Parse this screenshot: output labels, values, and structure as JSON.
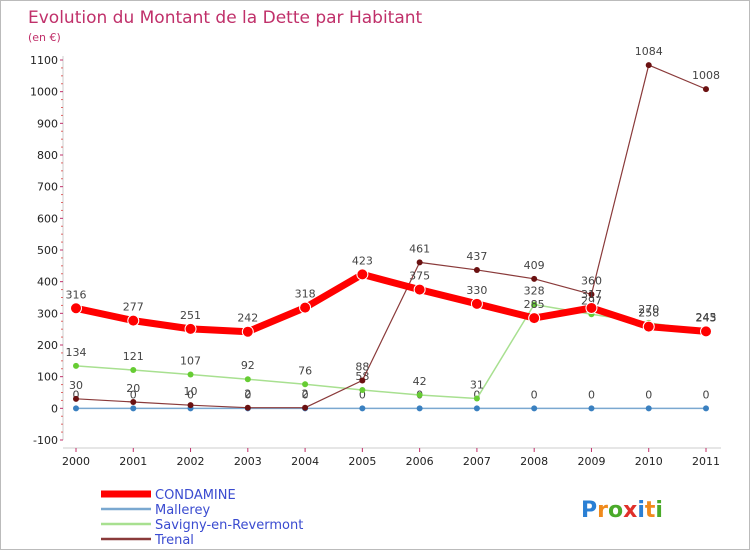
{
  "chart_data": {
    "type": "line",
    "title": "Evolution du Montant de la Dette par Habitant",
    "subtitle": "(en €)",
    "x": [
      2000,
      2001,
      2002,
      2003,
      2004,
      2005,
      2006,
      2007,
      2008,
      2009,
      2010,
      2011
    ],
    "y_ticks": [
      -100,
      0,
      100,
      200,
      300,
      400,
      500,
      600,
      700,
      800,
      900,
      1000,
      1100
    ],
    "ylim": [
      -100,
      1100
    ],
    "grid": false,
    "legend_position": "bottom-left",
    "series": [
      {
        "name": "CONDAMINE",
        "color": "#ff0000",
        "marker": "#ff0000",
        "width": 7,
        "values": [
          316,
          277,
          251,
          242,
          318,
          423,
          375,
          330,
          285,
          317,
          258,
          243
        ]
      },
      {
        "name": "Mallerey",
        "color": "#7aa8d0",
        "marker": "#3a80c0",
        "width": 1.5,
        "values": [
          0,
          0,
          0,
          0,
          0,
          0,
          0,
          0,
          0,
          0,
          0,
          0
        ]
      },
      {
        "name": "Savigny-en-Revermont",
        "color": "#a8e090",
        "marker": "#66cc33",
        "width": 1.5,
        "values": [
          134,
          121,
          107,
          92,
          76,
          58,
          42,
          31,
          328,
          297,
          270,
          245
        ]
      },
      {
        "name": "Trenal",
        "color": "#8a3a3a",
        "marker": "#6b1111",
        "width": 1.2,
        "values": [
          30,
          20,
          10,
          2,
          2,
          88,
          461,
          437,
          409,
          360,
          1084,
          1008
        ]
      }
    ]
  },
  "logo": {
    "text": "Proxiti"
  }
}
